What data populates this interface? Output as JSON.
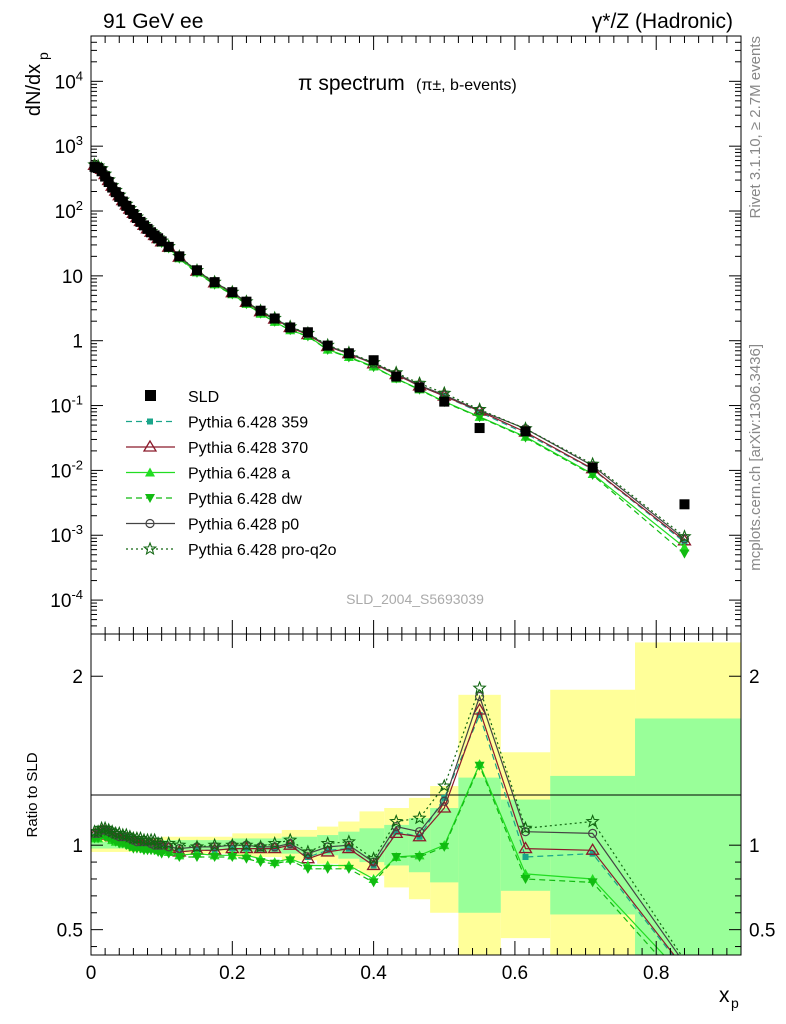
{
  "header": {
    "left": "91 GeV ee",
    "right": "γ*/Z (Hadronic)"
  },
  "side_text": {
    "rivet": "Rivet 3.1.10, ≥ 2.7M events",
    "source": "mcplots.cern.ch [arXiv:1306.3436]"
  },
  "colors": {
    "band_yellow": "#ffff99",
    "band_green": "#99ff99",
    "data": "#000000"
  },
  "chart_data": [
    {
      "type": "line",
      "panel": "main",
      "title_main": "π spectrum",
      "title_sub": "(π±, b-events)",
      "ylabel": "dN/dx",
      "ylabel_sub": "p",
      "y_scale": "log",
      "ylim": [
        3e-05,
        50000
      ],
      "xlim": [
        0,
        0.92
      ],
      "y_ticks": [
        "10^-4",
        "10^-3",
        "10^-2",
        "10^-1",
        "1",
        "10",
        "10^2",
        "10^3",
        "10^4"
      ],
      "watermark": "SLD_2004_S5693039",
      "legend_position": "lower-left",
      "x": [
        0.005,
        0.01,
        0.015,
        0.02,
        0.025,
        0.03,
        0.035,
        0.04,
        0.045,
        0.05,
        0.055,
        0.06,
        0.065,
        0.07,
        0.075,
        0.08,
        0.085,
        0.09,
        0.095,
        0.1,
        0.11,
        0.125,
        0.15,
        0.175,
        0.2,
        0.22,
        0.24,
        0.26,
        0.282,
        0.307,
        0.335,
        0.365,
        0.4,
        0.432,
        0.465,
        0.5,
        0.55,
        0.615,
        0.71,
        0.84
      ],
      "data": {
        "name": "SLD",
        "values": [
          480,
          460,
          410,
          340,
          280,
          230,
          195,
          165,
          140,
          120,
          104,
          90,
          78,
          68,
          60,
          53,
          47,
          42,
          38,
          34,
          28,
          20,
          12.2,
          8.0,
          5.6,
          4.0,
          2.9,
          2.2,
          1.6,
          1.35,
          0.84,
          0.64,
          0.5,
          0.28,
          0.19,
          0.115,
          0.045,
          0.04,
          0.011,
          0.003
        ]
      },
      "series": [
        {
          "name": "Pythia 6.428 359",
          "color": "#1aa58a",
          "dash": "6,4",
          "marker": "square",
          "values": [
            500,
            480,
            440,
            370,
            300,
            245,
            206,
            174,
            147,
            126,
            108,
            93,
            80,
            70,
            61,
            54,
            48,
            43,
            38,
            34,
            28,
            19.5,
            11.8,
            7.8,
            5.5,
            3.9,
            2.8,
            2.1,
            1.6,
            1.3,
            0.81,
            0.63,
            0.44,
            0.3,
            0.2,
            0.14,
            0.079,
            0.037,
            0.0104,
            0.00078
          ]
        },
        {
          "name": "Pythia 6.428 370",
          "color": "#8b1a2b",
          "dash": "",
          "marker": "triangle-open",
          "values": [
            505,
            485,
            440,
            365,
            296,
            241,
            203,
            172,
            145,
            124,
            107,
            92,
            79,
            69,
            60,
            53,
            47,
            42,
            37.5,
            33.5,
            27.6,
            19.4,
            11.8,
            7.8,
            5.5,
            3.9,
            2.8,
            2.15,
            1.6,
            1.24,
            0.81,
            0.63,
            0.44,
            0.3,
            0.2,
            0.14,
            0.082,
            0.039,
            0.0106,
            0.00082
          ]
        },
        {
          "name": "Pythia 6.428 a",
          "color": "#22dd22",
          "dash": "",
          "marker": "triangle",
          "values": [
            495,
            475,
            430,
            358,
            290,
            236,
            199,
            168,
            142,
            121,
            104,
            89,
            77,
            67,
            59,
            52,
            46,
            41,
            36.5,
            32.6,
            26.8,
            18.7,
            11.3,
            7.4,
            5.2,
            3.7,
            2.6,
            1.95,
            1.45,
            1.18,
            0.73,
            0.56,
            0.4,
            0.26,
            0.178,
            0.115,
            0.067,
            0.033,
            0.0088,
            0.00065
          ]
        },
        {
          "name": "Pythia 6.428 dw",
          "color": "#11bb11",
          "dash": "6,4",
          "marker": "triangle-down",
          "values": [
            495,
            475,
            430,
            357,
            289,
            235,
            198,
            167,
            141,
            120,
            103,
            88,
            76,
            66,
            58,
            51,
            45.5,
            40.5,
            36,
            32,
            26.4,
            18.4,
            11.1,
            7.3,
            5.15,
            3.65,
            2.6,
            1.95,
            1.45,
            1.16,
            0.72,
            0.55,
            0.39,
            0.26,
            0.175,
            0.113,
            0.066,
            0.032,
            0.0085,
            0.00052
          ]
        },
        {
          "name": "Pythia 6.428 p0",
          "color": "#444444",
          "dash": "",
          "marker": "circle-open",
          "values": [
            510,
            490,
            445,
            370,
            300,
            245,
            206,
            174,
            147,
            126,
            108,
            93,
            80,
            70,
            61,
            54,
            48,
            43,
            38,
            34,
            28,
            19.6,
            12.0,
            7.9,
            5.6,
            4.0,
            2.85,
            2.2,
            1.62,
            1.28,
            0.83,
            0.64,
            0.45,
            0.31,
            0.205,
            0.145,
            0.084,
            0.044,
            0.0118,
            0.00088
          ]
        },
        {
          "name": "Pythia 6.428 pro-q2o",
          "color": "#116611",
          "dash": "2,3",
          "marker": "star-open",
          "values": [
            515,
            495,
            450,
            372,
            302,
            247,
            208,
            176,
            148,
            127,
            109,
            94,
            81,
            71,
            62,
            55,
            48.5,
            43.5,
            38.5,
            34.5,
            28.4,
            19.9,
            12.1,
            8.0,
            5.6,
            4.0,
            2.88,
            2.22,
            1.64,
            1.3,
            0.85,
            0.65,
            0.46,
            0.32,
            0.22,
            0.155,
            0.087,
            0.044,
            0.0125,
            0.00095
          ]
        }
      ]
    },
    {
      "type": "line",
      "panel": "ratio",
      "ylabel": "Ratio to SLD",
      "xlabel": "x",
      "xlabel_sub": "p",
      "ylim": [
        0.35,
        2.25
      ],
      "y_ticks": [
        0.5,
        1,
        2
      ],
      "xlim": [
        0,
        0.92
      ],
      "x_ticks": [
        0,
        0.2,
        0.4,
        0.6,
        0.8
      ],
      "bands": [
        {
          "x0": 0.0,
          "x1": 0.1,
          "yellow": [
            0.96,
            1.04
          ],
          "green": [
            0.98,
            1.02
          ]
        },
        {
          "x0": 0.1,
          "x1": 0.2,
          "yellow": [
            0.95,
            1.05
          ],
          "green": [
            0.97,
            1.03
          ]
        },
        {
          "x0": 0.2,
          "x1": 0.27,
          "yellow": [
            0.93,
            1.07
          ],
          "green": [
            0.96,
            1.04
          ]
        },
        {
          "x0": 0.27,
          "x1": 0.32,
          "yellow": [
            0.91,
            1.09
          ],
          "green": [
            0.95,
            1.05
          ]
        },
        {
          "x0": 0.32,
          "x1": 0.35,
          "yellow": [
            0.89,
            1.11
          ],
          "green": [
            0.94,
            1.06
          ]
        },
        {
          "x0": 0.35,
          "x1": 0.38,
          "yellow": [
            0.86,
            1.14
          ],
          "green": [
            0.92,
            1.08
          ]
        },
        {
          "x0": 0.38,
          "x1": 0.415,
          "yellow": [
            0.82,
            1.2
          ],
          "green": [
            0.9,
            1.1
          ]
        },
        {
          "x0": 0.415,
          "x1": 0.45,
          "yellow": [
            0.75,
            1.22
          ],
          "green": [
            0.88,
            1.12
          ]
        },
        {
          "x0": 0.45,
          "x1": 0.48,
          "yellow": [
            0.68,
            1.28
          ],
          "green": [
            0.84,
            1.16
          ]
        },
        {
          "x0": 0.48,
          "x1": 0.52,
          "yellow": [
            0.6,
            1.35
          ],
          "green": [
            0.78,
            1.22
          ]
        },
        {
          "x0": 0.52,
          "x1": 0.58,
          "yellow": [
            0.2,
            1.89
          ],
          "green": [
            0.6,
            1.4
          ]
        },
        {
          "x0": 0.58,
          "x1": 0.65,
          "yellow": [
            0.45,
            1.55
          ],
          "green": [
            0.73,
            1.27
          ]
        },
        {
          "x0": 0.65,
          "x1": 0.77,
          "yellow": [
            0.2,
            1.92
          ],
          "green": [
            0.59,
            1.41
          ]
        },
        {
          "x0": 0.77,
          "x1": 0.92,
          "yellow": [
            0.2,
            2.2
          ],
          "green": [
            0.2,
            1.75
          ]
        }
      ],
      "series": [
        {
          "name": "Pythia 6.428 359",
          "values": [
            1.05,
            1.05,
            1.08,
            1.09,
            1.08,
            1.06,
            1.05,
            1.05,
            1.05,
            1.04,
            1.04,
            1.03,
            1.03,
            1.02,
            1.0,
            1.0,
            1.0,
            1.0,
            1.0,
            1.0,
            0.98,
            0.96,
            0.97,
            0.97,
            0.98,
            0.98,
            0.98,
            0.98,
            1.0,
            0.93,
            0.97,
            0.98,
            0.88,
            1.08,
            1.05,
            1.28,
            1.77,
            0.93,
            0.95,
            0.26
          ]
        },
        {
          "name": "Pythia 6.428 370",
          "values": [
            1.06,
            1.06,
            1.08,
            1.08,
            1.07,
            1.05,
            1.04,
            1.04,
            1.03,
            1.03,
            1.02,
            1.02,
            1.01,
            1.01,
            1.0,
            1.0,
            1.0,
            1.0,
            0.99,
            0.99,
            0.98,
            0.96,
            0.97,
            0.97,
            0.98,
            0.98,
            0.98,
            0.98,
            1.0,
            0.92,
            0.96,
            0.98,
            0.88,
            1.07,
            1.05,
            1.22,
            1.8,
            0.98,
            0.97,
            0.27
          ]
        },
        {
          "name": "Pythia 6.428 a",
          "values": [
            1.04,
            1.04,
            1.06,
            1.06,
            1.05,
            1.03,
            1.02,
            1.02,
            1.01,
            1.01,
            1.0,
            0.99,
            0.99,
            0.99,
            0.98,
            0.98,
            0.98,
            0.98,
            0.97,
            0.97,
            0.96,
            0.94,
            0.95,
            0.94,
            0.94,
            0.94,
            0.92,
            0.9,
            0.92,
            0.88,
            0.88,
            0.88,
            0.8,
            0.93,
            0.94,
            1.0,
            1.48,
            0.83,
            0.8,
            0.22
          ]
        },
        {
          "name": "Pythia 6.428 dw",
          "values": [
            1.04,
            1.04,
            1.06,
            1.05,
            1.04,
            1.03,
            1.02,
            1.01,
            1.01,
            1.0,
            0.99,
            0.98,
            0.98,
            0.98,
            0.97,
            0.97,
            0.97,
            0.97,
            0.96,
            0.95,
            0.95,
            0.93,
            0.93,
            0.93,
            0.93,
            0.92,
            0.9,
            0.89,
            0.91,
            0.86,
            0.86,
            0.86,
            0.78,
            0.93,
            0.93,
            0.99,
            1.47,
            0.8,
            0.78,
            0.17
          ]
        },
        {
          "name": "Pythia 6.428 p0",
          "values": [
            1.07,
            1.07,
            1.09,
            1.09,
            1.08,
            1.07,
            1.06,
            1.05,
            1.05,
            1.05,
            1.04,
            1.03,
            1.02,
            1.02,
            1.02,
            1.02,
            1.01,
            1.0,
            1.0,
            1.0,
            0.99,
            0.98,
            0.99,
            0.99,
            1.0,
            1.0,
            0.99,
            0.99,
            1.01,
            0.95,
            0.99,
            1.0,
            0.9,
            1.11,
            1.08,
            1.26,
            1.88,
            1.08,
            1.07,
            0.3
          ]
        },
        {
          "name": "Pythia 6.428 pro-q2o",
          "values": [
            1.08,
            1.08,
            1.1,
            1.1,
            1.09,
            1.08,
            1.07,
            1.07,
            1.06,
            1.06,
            1.05,
            1.04,
            1.04,
            1.04,
            1.03,
            1.03,
            1.03,
            1.03,
            1.01,
            1.01,
            1.01,
            1.0,
            0.99,
            1.0,
            1.0,
            1.0,
            0.99,
            1.01,
            1.03,
            0.96,
            1.01,
            1.02,
            0.92,
            1.14,
            1.16,
            1.35,
            1.93,
            1.1,
            1.14,
            0.32
          ]
        }
      ]
    }
  ]
}
